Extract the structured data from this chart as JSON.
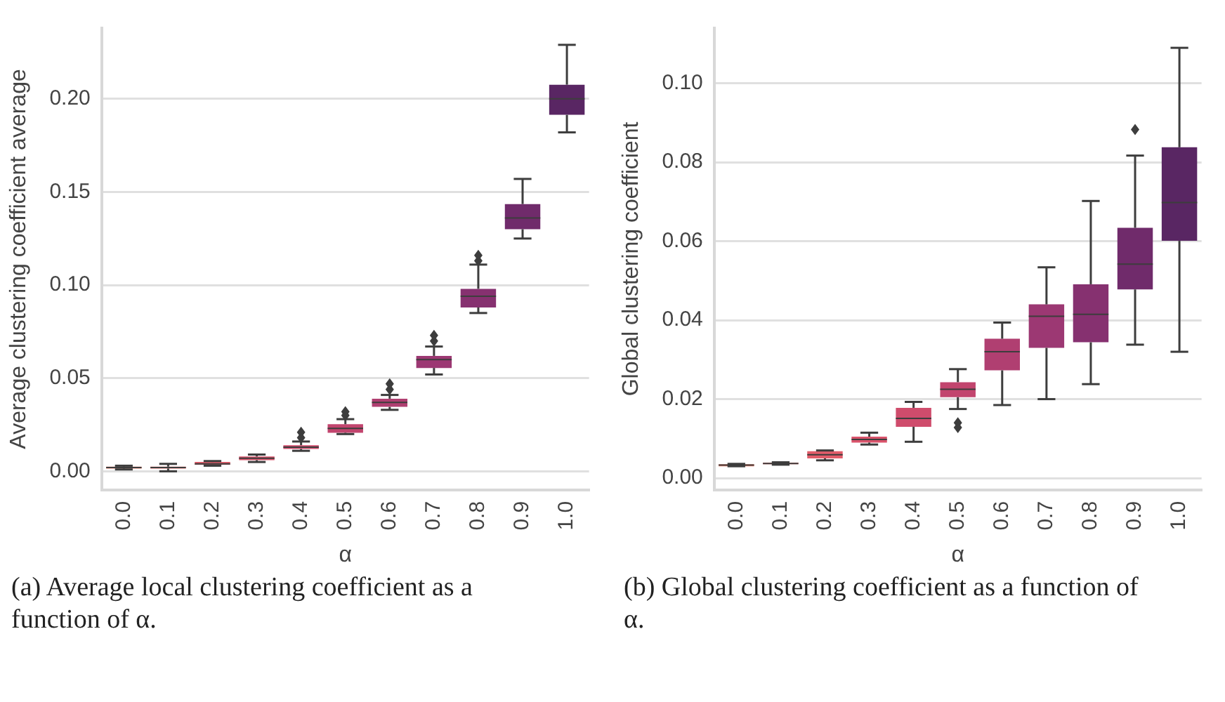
{
  "chart_data": [
    {
      "type": "box",
      "xlabel": "α",
      "ylabel": "Average clustering coefficient average",
      "categories": [
        "0.0",
        "0.1",
        "0.2",
        "0.3",
        "0.4",
        "0.5",
        "0.6",
        "0.7",
        "0.8",
        "0.9",
        "1.0"
      ],
      "colors": [
        "#f07c67",
        "#ea6b69",
        "#e25d6a",
        "#d9536b",
        "#cf4c6c",
        "#c2456e",
        "#b03f71",
        "#9c3873",
        "#863170",
        "#702b6b",
        "#592663"
      ],
      "boxes": [
        {
          "low": 0.001,
          "q1": 0.0015,
          "median": 0.002,
          "q3": 0.0025,
          "high": 0.003
        },
        {
          "low": 0.0,
          "q1": 0.0015,
          "median": 0.002,
          "q3": 0.0025,
          "high": 0.004
        },
        {
          "low": 0.003,
          "q1": 0.0035,
          "median": 0.004,
          "q3": 0.005,
          "high": 0.0055
        },
        {
          "low": 0.005,
          "q1": 0.006,
          "median": 0.007,
          "q3": 0.008,
          "high": 0.009
        },
        {
          "low": 0.011,
          "q1": 0.012,
          "median": 0.013,
          "q3": 0.014,
          "high": 0.016,
          "outliers": [
            0.018,
            0.021
          ]
        },
        {
          "low": 0.02,
          "q1": 0.0207,
          "median": 0.023,
          "q3": 0.0253,
          "high": 0.028,
          "outliers": [
            0.03,
            0.032
          ]
        },
        {
          "low": 0.033,
          "q1": 0.0346,
          "median": 0.037,
          "q3": 0.039,
          "high": 0.041,
          "outliers": [
            0.044,
            0.047
          ]
        },
        {
          "low": 0.052,
          "q1": 0.0555,
          "median": 0.06,
          "q3": 0.062,
          "high": 0.067,
          "outliers": [
            0.07,
            0.073
          ]
        },
        {
          "low": 0.085,
          "q1": 0.088,
          "median": 0.094,
          "q3": 0.098,
          "high": 0.111,
          "outliers": [
            0.113,
            0.116
          ]
        },
        {
          "low": 0.125,
          "q1": 0.13,
          "median": 0.136,
          "q3": 0.1435,
          "high": 0.157
        },
        {
          "low": 0.182,
          "q1": 0.1914,
          "median": 0.2,
          "q3": 0.2076,
          "high": 0.229
        }
      ],
      "ylim": [
        -0.01,
        0.238
      ],
      "yticks": [
        {
          "value": 0,
          "label": "0.00"
        },
        {
          "value": 0.05,
          "label": "0.05"
        },
        {
          "value": 0.1,
          "label": "0.10"
        },
        {
          "value": 0.15,
          "label": "0.15"
        },
        {
          "value": 0.2,
          "label": "0.20"
        }
      ],
      "grid": "y",
      "annotations": [
        "(a) Average local clustering coefficient as a function of α."
      ]
    },
    {
      "type": "box",
      "xlabel": "α",
      "ylabel": "Global clustering coefficient",
      "categories": [
        "0.0",
        "0.1",
        "0.2",
        "0.3",
        "0.4",
        "0.5",
        "0.6",
        "0.7",
        "0.8",
        "0.9",
        "1.0"
      ],
      "colors": [
        "#f07c67",
        "#ea6b69",
        "#e25d6a",
        "#d9536b",
        "#cf4c6c",
        "#c2456e",
        "#b03f71",
        "#9c3873",
        "#863170",
        "#702b6b",
        "#592663"
      ],
      "boxes": [
        {
          "low": 0.003,
          "q1": 0.003,
          "median": 0.0033,
          "q3": 0.0035,
          "high": 0.0036
        },
        {
          "low": 0.0034,
          "q1": 0.0035,
          "median": 0.0037,
          "q3": 0.0039,
          "high": 0.004
        },
        {
          "low": 0.0045,
          "q1": 0.005,
          "median": 0.0059,
          "q3": 0.0068,
          "high": 0.007
        },
        {
          "low": 0.0085,
          "q1": 0.009,
          "median": 0.0098,
          "q3": 0.0105,
          "high": 0.0115
        },
        {
          "low": 0.0092,
          "q1": 0.013,
          "median": 0.0151,
          "q3": 0.0178,
          "high": 0.0193
        },
        {
          "low": 0.0175,
          "q1": 0.0205,
          "median": 0.0225,
          "q3": 0.0243,
          "high": 0.0276,
          "outliers": [
            0.014,
            0.0128
          ]
        },
        {
          "low": 0.0185,
          "q1": 0.0273,
          "median": 0.032,
          "q3": 0.0353,
          "high": 0.0394
        },
        {
          "low": 0.02,
          "q1": 0.033,
          "median": 0.041,
          "q3": 0.044,
          "high": 0.0534
        },
        {
          "low": 0.0238,
          "q1": 0.0344,
          "median": 0.0415,
          "q3": 0.0491,
          "high": 0.0702
        },
        {
          "low": 0.0338,
          "q1": 0.0478,
          "median": 0.0542,
          "q3": 0.0634,
          "high": 0.0817,
          "outliers": [
            0.0883
          ]
        },
        {
          "low": 0.032,
          "q1": 0.0601,
          "median": 0.0698,
          "q3": 0.0838,
          "high": 0.109
        }
      ],
      "ylim": [
        -0.003,
        0.114
      ],
      "yticks": [
        {
          "value": 0,
          "label": "0.00"
        },
        {
          "value": 0.02,
          "label": "0.02"
        },
        {
          "value": 0.04,
          "label": "0.04"
        },
        {
          "value": 0.06,
          "label": "0.06"
        },
        {
          "value": 0.08,
          "label": "0.08"
        },
        {
          "value": 0.1,
          "label": "0.10"
        }
      ],
      "grid": "y",
      "annotations": [
        "(b) Global clustering coefficient as a function of α."
      ]
    }
  ]
}
